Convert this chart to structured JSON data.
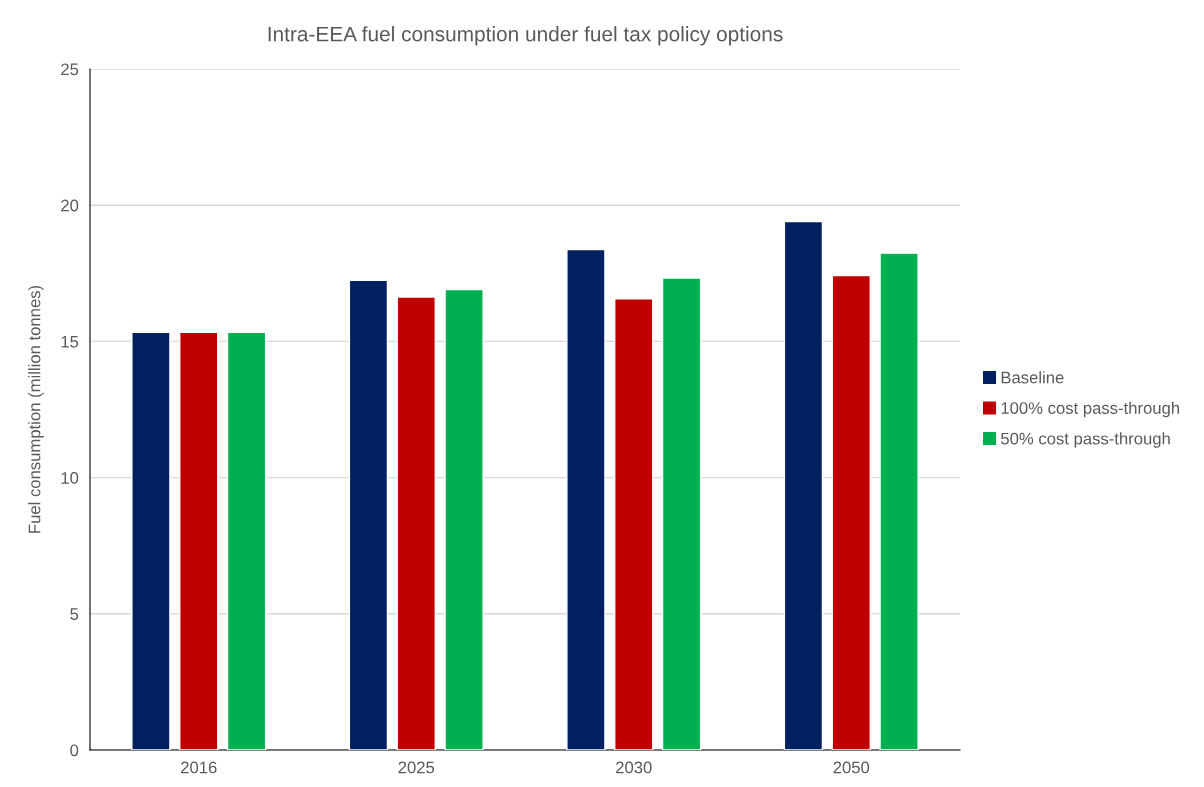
{
  "chart_data": {
    "type": "bar",
    "title": "Intra-EEA fuel consumption under fuel tax policy options",
    "ylabel": "Fuel consumption (million tonnes)",
    "categories": [
      "2016",
      "2025",
      "2030",
      "2050"
    ],
    "series": [
      {
        "name": "Baseline",
        "color": "#002060",
        "values": [
          15.33,
          17.24,
          18.37,
          19.4
        ]
      },
      {
        "name": "100% cost pass-through",
        "color": "#c00000",
        "values": [
          15.33,
          16.63,
          16.56,
          17.42
        ]
      },
      {
        "name": "50% cost pass-through",
        "color": "#00b050",
        "values": [
          15.33,
          16.9,
          17.33,
          18.24
        ]
      }
    ],
    "ylim": [
      0,
      25
    ],
    "yticks": [
      0,
      5,
      10,
      15,
      20,
      25
    ],
    "grid": "y",
    "legend": "right"
  }
}
